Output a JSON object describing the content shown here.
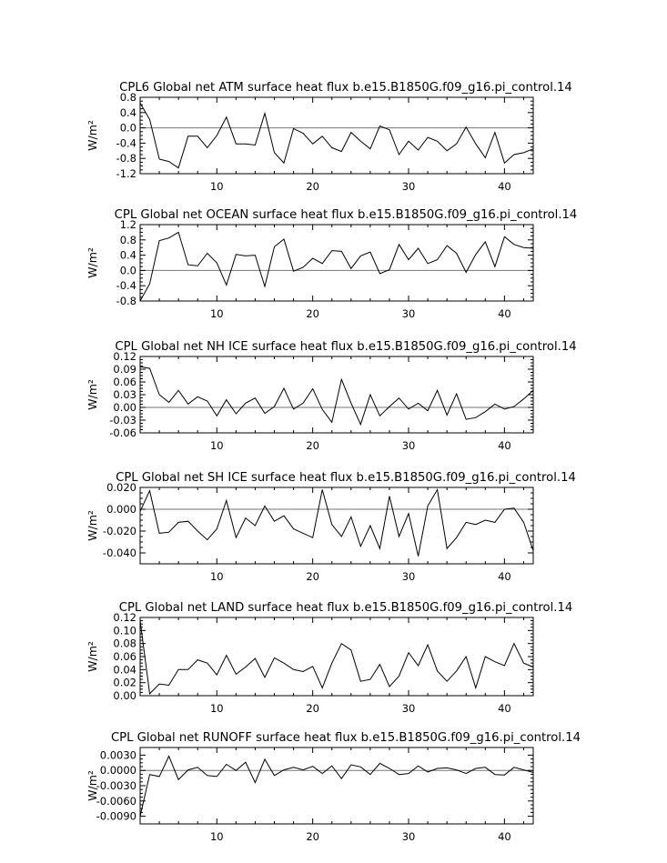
{
  "chart_data": [
    {
      "type": "line",
      "title": "CPL6 Global net ATM surface heat flux b.e15.B1850G.f09_g16.pi_control.14",
      "xlabel": "",
      "ylabel": "W/m²",
      "xlim": [
        2,
        43
      ],
      "ylim": [
        -1.2,
        0.8
      ],
      "yticks": [
        -1.2,
        -0.8,
        -0.4,
        0.0,
        0.4,
        0.8
      ],
      "ytick_labels": [
        "-1.2",
        "-0.8",
        "-0.4",
        "0.0",
        "0.4",
        "0.8"
      ],
      "xticks": [
        10,
        20,
        30,
        40
      ],
      "xtick_labels": [
        "10",
        "20",
        "30",
        "40"
      ],
      "zero_line": true,
      "series": [
        {
          "x": [
            2,
            3,
            4,
            5,
            6,
            7,
            8,
            9,
            10,
            11,
            12,
            13,
            14,
            15,
            16,
            17,
            18,
            19,
            20,
            21,
            22,
            23,
            24,
            25,
            26,
            27,
            28,
            29,
            30,
            31,
            32,
            33,
            34,
            35,
            36,
            37,
            38,
            39,
            40,
            41,
            42,
            43
          ],
          "values": [
            0.65,
            0.22,
            -0.82,
            -0.88,
            -1.05,
            -0.22,
            -0.22,
            -0.52,
            -0.2,
            0.28,
            -0.42,
            -0.42,
            -0.45,
            0.38,
            -0.65,
            -0.92,
            -0.02,
            -0.14,
            -0.42,
            -0.22,
            -0.52,
            -0.62,
            -0.12,
            -0.35,
            -0.55,
            0.05,
            -0.05,
            -0.7,
            -0.35,
            -0.58,
            -0.25,
            -0.35,
            -0.6,
            -0.42,
            0.02,
            -0.42,
            -0.78,
            -0.12,
            -0.92,
            -0.7,
            -0.65,
            -0.55
          ]
        }
      ]
    },
    {
      "type": "line",
      "title": "CPL Global net OCEAN surface heat flux b.e15.B1850G.f09_g16.pi_control.14",
      "xlabel": "",
      "ylabel": "W/m²",
      "xlim": [
        2,
        43
      ],
      "ylim": [
        -0.8,
        1.2
      ],
      "yticks": [
        -0.8,
        -0.4,
        0.0,
        0.4,
        0.8,
        1.2
      ],
      "ytick_labels": [
        "-0.8",
        "-0.4",
        "0.0",
        "0.4",
        "0.8",
        "1.2"
      ],
      "xticks": [
        10,
        20,
        30,
        40
      ],
      "xtick_labels": [
        "10",
        "20",
        "30",
        "40"
      ],
      "zero_line": true,
      "series": [
        {
          "x": [
            2,
            3,
            4,
            5,
            6,
            7,
            8,
            9,
            10,
            11,
            12,
            13,
            14,
            15,
            16,
            17,
            18,
            19,
            20,
            21,
            22,
            23,
            24,
            25,
            26,
            27,
            28,
            29,
            30,
            31,
            32,
            33,
            34,
            35,
            36,
            37,
            38,
            39,
            40,
            41,
            42,
            43
          ],
          "values": [
            -0.82,
            -0.35,
            0.78,
            0.85,
            1.0,
            0.15,
            0.12,
            0.45,
            0.2,
            -0.38,
            0.42,
            0.38,
            0.4,
            -0.42,
            0.62,
            0.82,
            -0.02,
            0.08,
            0.32,
            0.18,
            0.52,
            0.5,
            0.05,
            0.38,
            0.48,
            -0.08,
            0.02,
            0.68,
            0.28,
            0.58,
            0.18,
            0.28,
            0.65,
            0.45,
            -0.05,
            0.42,
            0.75,
            0.1,
            0.88,
            0.68,
            0.6,
            0.58
          ]
        }
      ]
    },
    {
      "type": "line",
      "title": "CPL Global net NH ICE surface heat flux b.e15.B1850G.f09_g16.pi_control.14",
      "xlabel": "",
      "ylabel": "W/m²",
      "xlim": [
        2,
        43
      ],
      "ylim": [
        -0.06,
        0.12
      ],
      "yticks": [
        -0.06,
        -0.03,
        0.0,
        0.03,
        0.06,
        0.09,
        0.12
      ],
      "ytick_labels": [
        "-0.06",
        "-0.03",
        "0.00",
        "0.03",
        "0.06",
        "0.09",
        "0.12"
      ],
      "xticks": [
        10,
        20,
        30,
        40
      ],
      "xtick_labels": [
        "10",
        "20",
        "30",
        "40"
      ],
      "zero_line": true,
      "series": [
        {
          "x": [
            2,
            3,
            4,
            5,
            6,
            7,
            8,
            9,
            10,
            11,
            12,
            13,
            14,
            15,
            16,
            17,
            18,
            19,
            20,
            21,
            22,
            23,
            24,
            25,
            26,
            27,
            28,
            29,
            30,
            31,
            32,
            33,
            34,
            35,
            36,
            37,
            38,
            39,
            40,
            41,
            42,
            43
          ],
          "values": [
            0.096,
            0.092,
            0.03,
            0.012,
            0.04,
            0.008,
            0.025,
            0.015,
            -0.02,
            0.018,
            -0.015,
            0.01,
            0.022,
            -0.014,
            0.002,
            0.045,
            -0.004,
            0.01,
            0.044,
            -0.005,
            -0.035,
            0.066,
            0.01,
            -0.04,
            0.03,
            -0.02,
            0.002,
            0.022,
            -0.004,
            0.01,
            -0.008,
            0.04,
            -0.018,
            0.032,
            -0.028,
            -0.024,
            -0.01,
            0.008,
            -0.004,
            0.002,
            0.02,
            0.04
          ]
        }
      ]
    },
    {
      "type": "line",
      "title": "CPL Global net SH ICE surface heat flux b.e15.B1850G.f09_g16.pi_control.14",
      "xlabel": "",
      "ylabel": "W/m²",
      "xlim": [
        2,
        43
      ],
      "ylim": [
        -0.05,
        0.02
      ],
      "yticks": [
        -0.04,
        -0.02,
        0.0,
        0.02
      ],
      "ytick_labels": [
        "-0.040",
        "-0.020",
        "0.000",
        "0.020"
      ],
      "xticks": [
        10,
        20,
        30,
        40
      ],
      "xtick_labels": [
        "10",
        "20",
        "30",
        "40"
      ],
      "zero_line": true,
      "series": [
        {
          "x": [
            2,
            3,
            4,
            5,
            6,
            7,
            8,
            9,
            10,
            11,
            12,
            13,
            14,
            15,
            16,
            17,
            18,
            19,
            20,
            21,
            22,
            23,
            24,
            25,
            26,
            27,
            28,
            29,
            30,
            31,
            32,
            33,
            34,
            35,
            36,
            37,
            38,
            39,
            40,
            41,
            42,
            43
          ],
          "values": [
            -0.002,
            0.017,
            -0.022,
            -0.021,
            -0.012,
            -0.011,
            -0.02,
            -0.028,
            -0.018,
            0.008,
            -0.026,
            -0.008,
            -0.015,
            0.003,
            -0.011,
            -0.006,
            -0.018,
            -0.022,
            -0.026,
            0.018,
            -0.014,
            -0.025,
            -0.007,
            -0.034,
            -0.015,
            -0.036,
            0.012,
            -0.025,
            -0.004,
            -0.043,
            0.003,
            0.018,
            -0.036,
            -0.026,
            -0.012,
            -0.014,
            -0.01,
            -0.012,
            0.0,
            0.001,
            -0.012,
            -0.038
          ]
        }
      ]
    },
    {
      "type": "line",
      "title": "CPL Global net LAND surface heat flux b.e15.B1850G.f09_g16.pi_control.14",
      "xlabel": "",
      "ylabel": "W/m²",
      "xlim": [
        2,
        43
      ],
      "ylim": [
        0.0,
        0.12
      ],
      "yticks": [
        0.0,
        0.02,
        0.04,
        0.06,
        0.08,
        0.1,
        0.12
      ],
      "ytick_labels": [
        "0.00",
        "0.02",
        "0.04",
        "0.06",
        "0.08",
        "0.10",
        "0.12"
      ],
      "xticks": [
        10,
        20,
        30,
        40
      ],
      "xtick_labels": [
        "10",
        "20",
        "30",
        "40"
      ],
      "zero_line": false,
      "series": [
        {
          "x": [
            2,
            3,
            4,
            5,
            6,
            7,
            8,
            9,
            10,
            11,
            12,
            13,
            14,
            15,
            16,
            17,
            18,
            19,
            20,
            21,
            22,
            23,
            24,
            25,
            26,
            27,
            28,
            29,
            30,
            31,
            32,
            33,
            34,
            35,
            36,
            37,
            38,
            39,
            40,
            41,
            42,
            43
          ],
          "values": [
            0.115,
            0.003,
            0.018,
            0.016,
            0.04,
            0.04,
            0.055,
            0.05,
            0.032,
            0.062,
            0.033,
            0.044,
            0.057,
            0.028,
            0.058,
            0.05,
            0.04,
            0.037,
            0.045,
            0.012,
            0.05,
            0.08,
            0.07,
            0.022,
            0.025,
            0.048,
            0.014,
            0.03,
            0.066,
            0.046,
            0.078,
            0.038,
            0.022,
            0.038,
            0.06,
            0.012,
            0.06,
            0.052,
            0.046,
            0.08,
            0.05,
            0.044
          ]
        }
      ]
    },
    {
      "type": "line",
      "title": "CPL Global net RUNOFF surface heat flux b.e15.B1850G.f09_g16.pi_control.14",
      "xlabel": "",
      "ylabel": "W/m²",
      "xlim": [
        2,
        43
      ],
      "ylim": [
        -0.0105,
        0.0045
      ],
      "yticks": [
        -0.009,
        -0.006,
        -0.003,
        0.0,
        0.003
      ],
      "ytick_labels": [
        "-0.0090",
        "-0.0060",
        "-0.0030",
        "0.0000",
        "0.0030"
      ],
      "xticks": [
        10,
        20,
        30,
        40
      ],
      "xtick_labels": [
        "10",
        "20",
        "30",
        "40"
      ],
      "zero_line": true,
      "series": [
        {
          "x": [
            2,
            3,
            4,
            5,
            6,
            7,
            8,
            9,
            10,
            11,
            12,
            13,
            14,
            15,
            16,
            17,
            18,
            19,
            20,
            21,
            22,
            23,
            24,
            25,
            26,
            27,
            28,
            29,
            30,
            31,
            32,
            33,
            34,
            35,
            36,
            37,
            38,
            39,
            40,
            41,
            42,
            43
          ],
          "values": [
            -0.009,
            -0.0008,
            -0.0012,
            0.0028,
            -0.0018,
            0.0001,
            0.0006,
            -0.001,
            -0.0012,
            0.0012,
            0.0,
            0.0016,
            -0.0024,
            0.0022,
            -0.001,
            0.0001,
            0.0006,
            0.0001,
            0.0008,
            -0.0006,
            0.0009,
            -0.0016,
            0.0011,
            0.0007,
            -0.0008,
            0.0014,
            0.0004,
            -0.0008,
            -0.0006,
            0.0009,
            -0.0003,
            0.0004,
            0.0005,
            0.0001,
            -0.0006,
            0.0004,
            0.0006,
            -0.0008,
            -0.0009,
            0.0006,
            0.0001,
            -0.0004
          ]
        }
      ]
    }
  ]
}
